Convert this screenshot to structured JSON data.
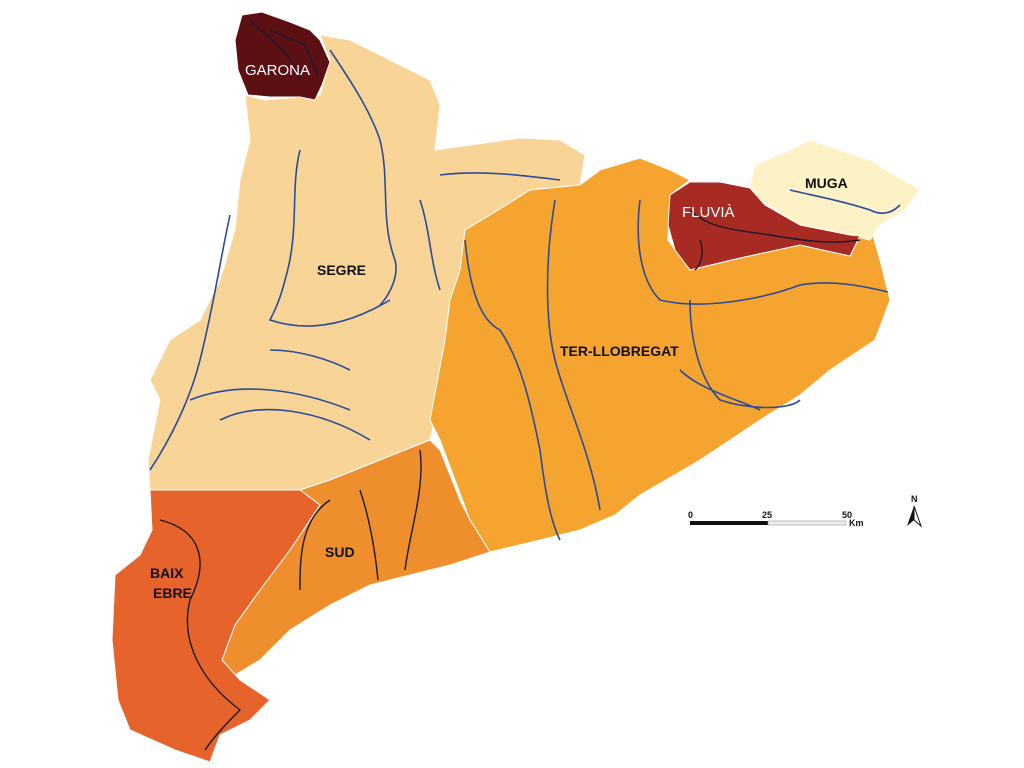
{
  "regions": [
    {
      "name": "GARONA",
      "color": "#5c1014"
    },
    {
      "name": "SEGRE",
      "color": "#f8d497"
    },
    {
      "name": "TER-LLOBREGAT",
      "color": "#f4a42f"
    },
    {
      "name": "MUGA",
      "color": "#fdf1c6"
    },
    {
      "name": "FLUVIÀ",
      "color": "#a72b22"
    },
    {
      "name": "SUD",
      "color": "#ef8e2c"
    },
    {
      "name": "BAIX EBRE",
      "color": "#e6632b"
    }
  ],
  "labels": {
    "garona": "GARONA",
    "segre": "SEGRE",
    "ter_llobregat": "TER-LLOBREGAT",
    "muga": "MUGA",
    "fluvia": "FLUVIÀ",
    "sud": "SUD",
    "baix_ebre_1": "BAIX",
    "baix_ebre_2": "EBRE"
  },
  "river_color": "#2b4b9b",
  "scale_bar": {
    "ticks": [
      "0",
      "25",
      "50"
    ],
    "unit": "Km"
  },
  "north_arrow": {
    "label": "N"
  }
}
